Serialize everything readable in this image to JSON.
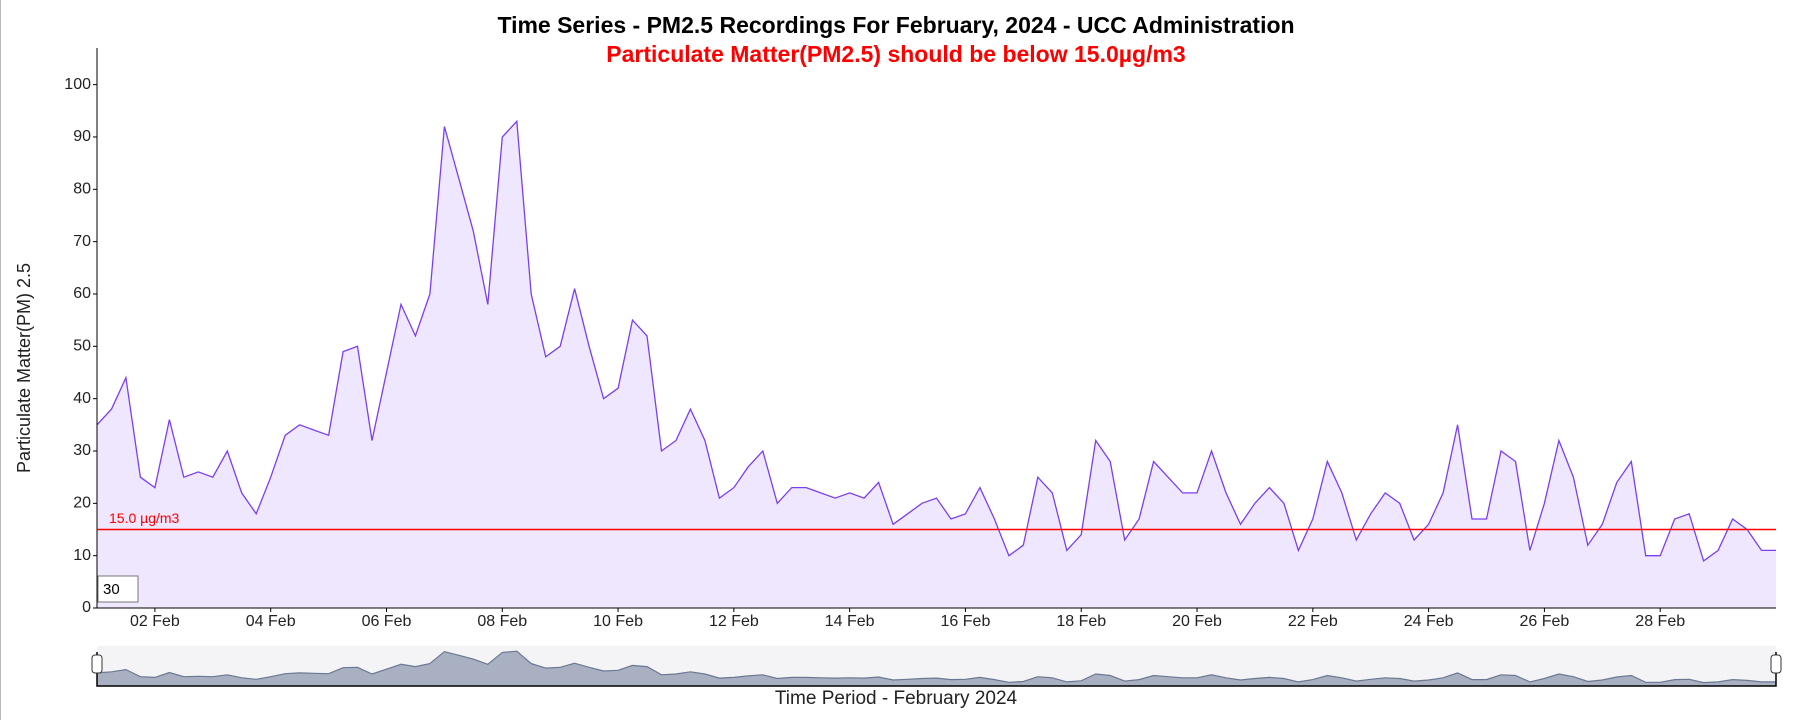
{
  "chart_data": {
    "type": "line",
    "title": "Time Series - PM2.5 Recordings For February, 2024 - UCC Administration",
    "subtitle": "Particulate Matter(PM2.5) should be below 15.0µg/m3",
    "y_label": "Particulate Matter(PM) 2.5",
    "x_label": "Time Period - February 2024",
    "color": "#7b3ff0",
    "fill": "#efe7fd",
    "threshold": {
      "value": 15,
      "label": "15.0 µg/m3",
      "color": "#ff0000"
    },
    "roll_period": 30,
    "xlim": [
      1,
      30
    ],
    "ylim": [
      0,
      107
    ],
    "yticks": [
      0,
      10,
      20,
      30,
      40,
      50,
      60,
      70,
      80,
      90,
      100
    ],
    "xticks": [
      {
        "value": 2,
        "label": "02 Feb"
      },
      {
        "value": 4,
        "label": "04 Feb"
      },
      {
        "value": 6,
        "label": "06 Feb"
      },
      {
        "value": 8,
        "label": "08 Feb"
      },
      {
        "value": 10,
        "label": "10 Feb"
      },
      {
        "value": 12,
        "label": "12 Feb"
      },
      {
        "value": 14,
        "label": "14 Feb"
      },
      {
        "value": 16,
        "label": "16 Feb"
      },
      {
        "value": 18,
        "label": "18 Feb"
      },
      {
        "value": 20,
        "label": "20 Feb"
      },
      {
        "value": 22,
        "label": "22 Feb"
      },
      {
        "value": 24,
        "label": "24 Feb"
      },
      {
        "value": 26,
        "label": "26 Feb"
      },
      {
        "value": 28,
        "label": "28 Feb"
      }
    ],
    "x": [
      1,
      1.25,
      1.5,
      1.75,
      2,
      2.25,
      2.5,
      2.75,
      3,
      3.25,
      3.5,
      3.75,
      4,
      4.25,
      4.5,
      4.75,
      5,
      5.25,
      5.5,
      5.75,
      6,
      6.25,
      6.5,
      6.75,
      7,
      7.25,
      7.5,
      7.75,
      8,
      8.25,
      8.5,
      8.75,
      9,
      9.25,
      9.5,
      9.75,
      10,
      10.25,
      10.5,
      10.75,
      11,
      11.25,
      11.5,
      11.75,
      12,
      12.25,
      12.5,
      12.75,
      13,
      13.25,
      13.5,
      13.75,
      14,
      14.25,
      14.5,
      14.75,
      15,
      15.25,
      15.5,
      15.75,
      16,
      16.25,
      16.5,
      16.75,
      17,
      17.25,
      17.5,
      17.75,
      18,
      18.25,
      18.5,
      18.75,
      19,
      19.25,
      19.5,
      19.75,
      20,
      20.25,
      20.5,
      20.75,
      21,
      21.25,
      21.5,
      21.75,
      22,
      22.25,
      22.5,
      22.75,
      23,
      23.25,
      23.5,
      23.75,
      24,
      24.25,
      24.5,
      24.75,
      25,
      25.25,
      25.5,
      25.75,
      26,
      26.25,
      26.5,
      26.75,
      27,
      27.25,
      27.5,
      27.75,
      28,
      28.25,
      28.5,
      28.75,
      29,
      29.25,
      29.5,
      29.75,
      30
    ],
    "values": [
      35,
      38,
      44,
      25,
      23,
      36,
      25,
      26,
      25,
      30,
      22,
      18,
      25,
      33,
      35,
      34,
      33,
      49,
      50,
      32,
      45,
      58,
      52,
      60,
      92,
      82,
      72,
      58,
      90,
      93,
      60,
      48,
      50,
      61,
      50,
      40,
      42,
      55,
      52,
      30,
      32,
      38,
      32,
      21,
      23,
      27,
      30,
      20,
      23,
      23,
      22,
      21,
      22,
      21,
      24,
      16,
      18,
      20,
      21,
      17,
      18,
      23,
      17,
      10,
      12,
      25,
      22,
      11,
      14,
      32,
      28,
      13,
      17,
      28,
      25,
      22,
      22,
      30,
      22,
      16,
      20,
      23,
      20,
      11,
      17,
      28,
      22,
      13,
      18,
      22,
      20,
      13,
      16,
      22,
      35,
      17,
      17,
      30,
      28,
      11,
      20,
      32,
      25,
      12,
      16,
      24,
      28,
      10,
      10,
      17,
      18,
      9,
      11,
      17,
      15,
      11,
      11
    ]
  }
}
